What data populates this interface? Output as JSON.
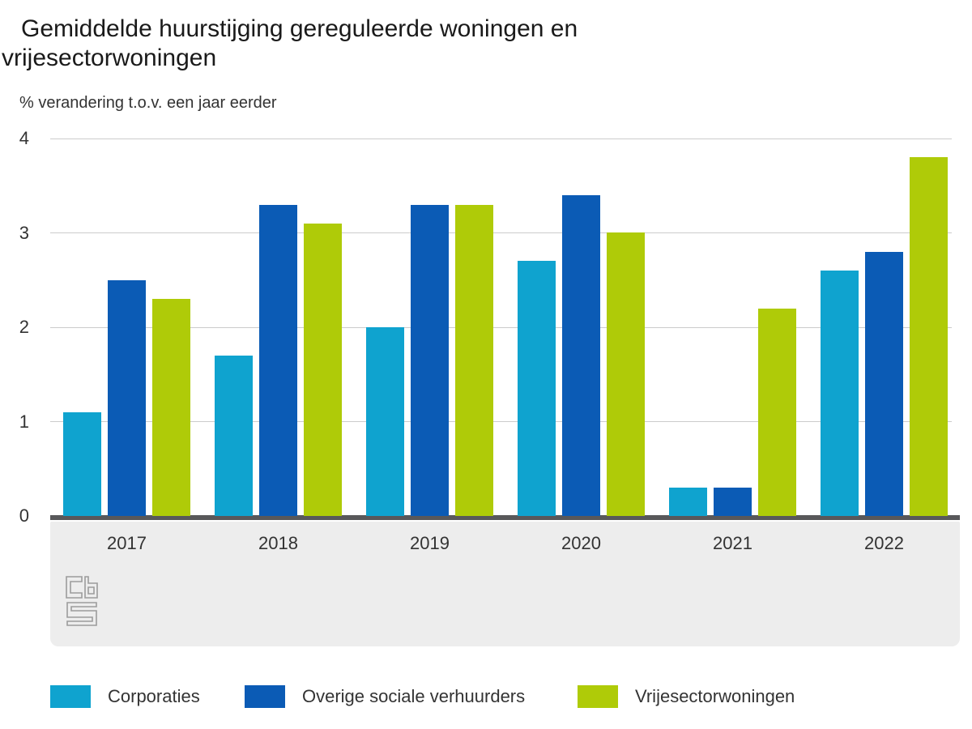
{
  "header": {
    "title_line1": "Gemiddelde huurstijging gereguleerde woningen en",
    "title_line2": "vrijesectorwoningen",
    "subtitle": "% verandering t.o.v. een jaar eerder"
  },
  "chart_data": {
    "type": "bar",
    "title": "Gemiddelde huurstijging gereguleerde woningen en vrijesectorwoningen",
    "subtitle": "% verandering t.o.v. een jaar eerder",
    "categories": [
      "2017",
      "2018",
      "2019",
      "2020",
      "2021",
      "2022"
    ],
    "series": [
      {
        "name": "Corporaties",
        "color": "#0fa3cf",
        "values": [
          1.1,
          1.7,
          2.0,
          2.7,
          0.3,
          2.6
        ]
      },
      {
        "name": "Overige sociale verhuurders",
        "color": "#0b5bb5",
        "values": [
          2.5,
          3.3,
          3.3,
          3.4,
          0.3,
          2.8
        ]
      },
      {
        "name": "Vrijesectorwoningen",
        "color": "#afcb08",
        "values": [
          2.3,
          3.1,
          3.3,
          3.0,
          2.2,
          3.8
        ]
      }
    ],
    "xlabel": "",
    "ylabel": "% verandering t.o.v. een jaar eerder",
    "ylim": [
      0,
      4
    ],
    "yticks": [
      0,
      1,
      2,
      3,
      4
    ],
    "grid": true,
    "legend_position": "bottom"
  },
  "branding": {
    "logo_name": "cbs-logo"
  },
  "colors": {
    "axis_line": "#58585a",
    "gridline": "#cccccc",
    "band_background": "#ededed",
    "title_text": "#1a1a1a",
    "label_text": "#333333",
    "logo_stroke": "#9c9c9c"
  }
}
